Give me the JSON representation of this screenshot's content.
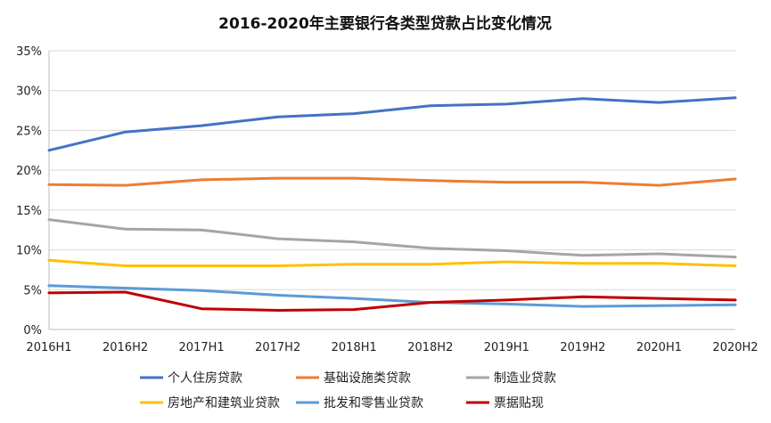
{
  "chart_data": {
    "type": "line",
    "title": "2016-2020年主要银行各类型贷款占比变化情况",
    "xlabel": "",
    "ylabel": "",
    "ylim": [
      0,
      35
    ],
    "y_tick_step": 5,
    "y_tick_format": "percent",
    "grid": true,
    "legend_position": "bottom",
    "x": [
      "2016H1",
      "2016H2",
      "2017H1",
      "2017H2",
      "2018H1",
      "2018H2",
      "2019H1",
      "2019H2",
      "2020H1",
      "2020H2"
    ],
    "series": [
      {
        "name": "个人住房贷款",
        "color": "#4472C4",
        "values": [
          22.5,
          24.8,
          25.6,
          26.7,
          27.1,
          28.1,
          28.3,
          29.0,
          28.5,
          29.1
        ]
      },
      {
        "name": "基础设施类贷款",
        "color": "#ED7D31",
        "values": [
          18.2,
          18.1,
          18.8,
          19.0,
          19.0,
          18.7,
          18.5,
          18.5,
          18.1,
          18.9
        ]
      },
      {
        "name": "制造业贷款",
        "color": "#A5A5A5",
        "values": [
          13.8,
          12.6,
          12.5,
          11.4,
          11.0,
          10.2,
          9.9,
          9.3,
          9.5,
          9.1
        ]
      },
      {
        "name": "房地产和建筑业贷款",
        "color": "#FFC000",
        "values": [
          8.7,
          8.0,
          8.0,
          8.0,
          8.2,
          8.2,
          8.5,
          8.3,
          8.3,
          8.0
        ]
      },
      {
        "name": "批发和零售业贷款",
        "color": "#5B9BD5",
        "values": [
          5.5,
          5.2,
          4.9,
          4.3,
          3.9,
          3.4,
          3.2,
          2.9,
          3.0,
          3.1
        ]
      },
      {
        "name": "票据贴现",
        "color": "#C00000",
        "values": [
          4.6,
          4.7,
          2.6,
          2.4,
          2.5,
          3.4,
          3.7,
          4.1,
          3.9,
          3.7
        ]
      }
    ]
  }
}
